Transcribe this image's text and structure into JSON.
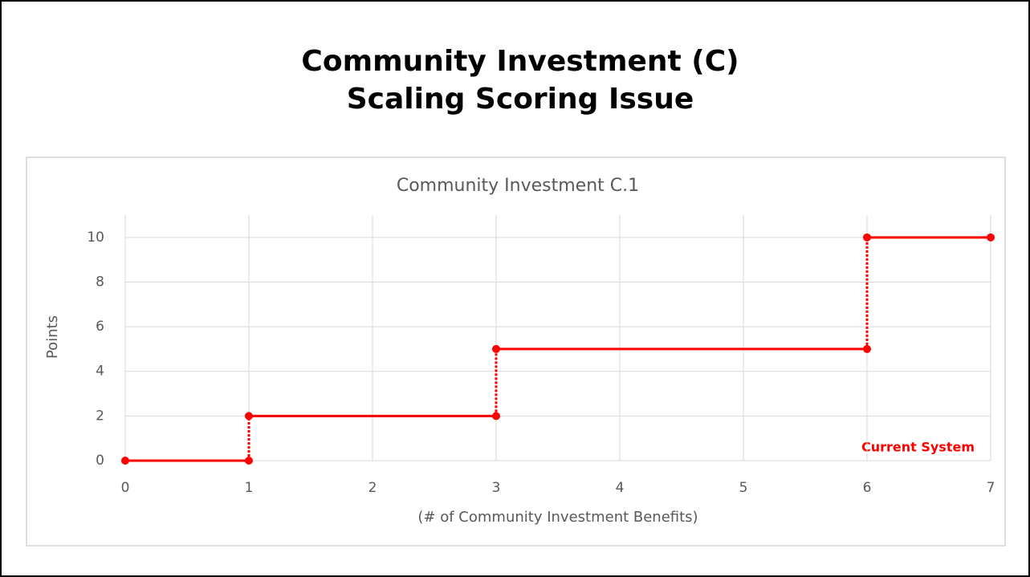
{
  "slide_title": [
    "Community Investment (C)",
    "Scaling Scoring Issue"
  ],
  "chart_data": {
    "type": "step",
    "title": "Community Investment C.1",
    "x_label": "(# of Community Investment Benefits)",
    "y_label": "Points",
    "annotation": "Current System",
    "series": [
      {
        "name": "Current System",
        "color": "#ff0000",
        "x": [
          0,
          1,
          1,
          3,
          3,
          6,
          6,
          7
        ],
        "values": [
          0,
          0,
          2,
          2,
          5,
          5,
          10,
          10
        ]
      }
    ],
    "xlim": [
      0,
      7
    ],
    "xticks": [
      0,
      1,
      2,
      3,
      4,
      5,
      6,
      7
    ],
    "ylim": [
      0,
      11
    ],
    "yticks": [
      0,
      2,
      4,
      6,
      8,
      10
    ],
    "grid": true
  }
}
